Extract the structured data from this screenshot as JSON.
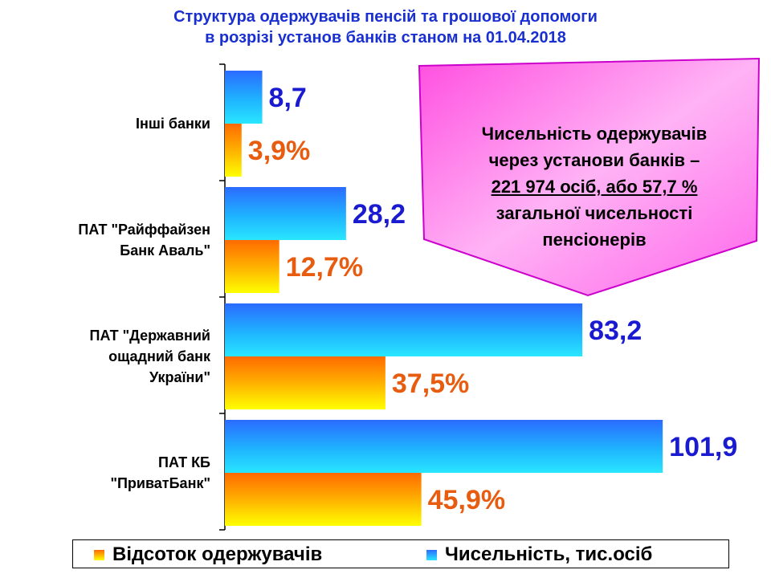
{
  "title": {
    "line1": "Структура одержувачів пенсій та грошової допомоги",
    "line2": "в розрізі установ банків станом на 01.04.2018"
  },
  "callout": {
    "line1": "Чисельність одержувачів",
    "line2": "через установи банків –",
    "line3": "221 974 осіб, або 57,7 %",
    "line4": "загальної чисельності",
    "line5": "пенсіонерів"
  },
  "chart_data": {
    "type": "bar",
    "orientation": "horizontal",
    "categories": [
      [
        "Інші банки"
      ],
      [
        "ПАТ \"Райффайзен",
        "Банк Аваль\""
      ],
      [
        "ПАТ \"Державний",
        "ощадний банк",
        "України\""
      ],
      [
        "ПАТ КБ",
        "\"ПриватБанк\""
      ]
    ],
    "series": [
      {
        "name": "Чисельність, тис.осіб",
        "values": [
          8.7,
          28.2,
          83.2,
          101.9
        ],
        "labels": [
          "8,7",
          "28,2",
          "83,2",
          "101,9"
        ],
        "color": "#1fa8ff"
      },
      {
        "name": "Відсоток одержувачів",
        "values": [
          3.9,
          12.7,
          37.5,
          45.9
        ],
        "labels": [
          "3,9%",
          "12,7%",
          "37,5%",
          "45,9%"
        ],
        "color": "#ff8a00"
      }
    ],
    "legend_position": "bottom"
  },
  "colors": {
    "title": "#1a2fd0",
    "value_label": "#1a1ad0",
    "percent_label": "#e85c10",
    "callout_fill": "#ff88ee"
  }
}
